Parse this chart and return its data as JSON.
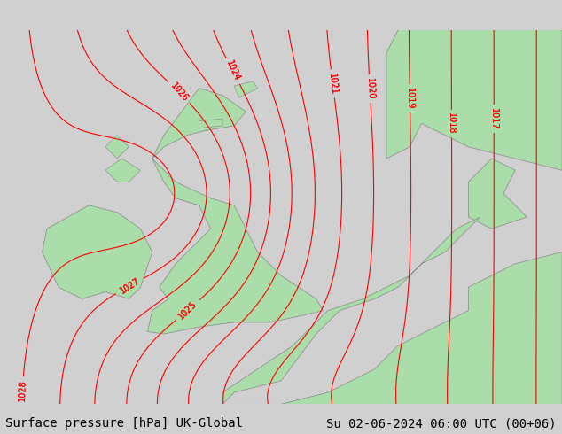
{
  "title_left": "Surface pressure [hPa] UK-Global",
  "title_right": "Su 02-06-2024 06:00 UTC (00+06)",
  "bg_color": "#d0d0d0",
  "land_color": "#aaddaa",
  "sea_color": "#e8e8e8",
  "contour_color": "red",
  "coast_color": "#888888",
  "fig_width": 6.34,
  "fig_height": 4.9,
  "dpi": 100,
  "title_fontsize": 10,
  "label_fontsize": 7
}
